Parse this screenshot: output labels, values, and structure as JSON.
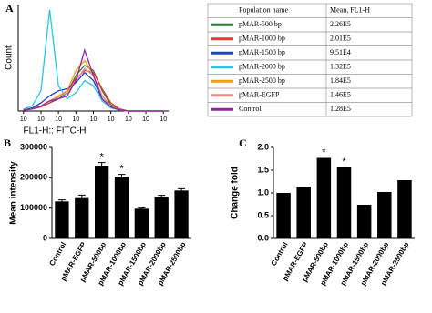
{
  "chart_data": [
    {
      "type": "line",
      "panel": "A",
      "x_label": "FL1-H:: FITC-H",
      "y_label": "Count",
      "x": [
        0,
        0.5,
        1,
        1.5,
        2,
        2.5,
        3,
        3.5,
        4,
        4.5,
        5,
        5.5,
        6,
        6.5,
        7,
        7.5,
        8
      ],
      "xlim": [
        -0.3,
        8.3
      ],
      "ylim": [
        0,
        105
      ],
      "xticks": [
        {
          "value": 0,
          "label": "10"
        },
        {
          "value": 1,
          "label": "10"
        },
        {
          "value": 2,
          "label": "10"
        },
        {
          "value": 3,
          "label": "10"
        },
        {
          "value": 4,
          "label": "10"
        },
        {
          "value": 5,
          "label": "10"
        },
        {
          "value": 6,
          "label": "10"
        },
        {
          "value": 7,
          "label": "10"
        },
        {
          "value": 8,
          "label": "10"
        }
      ],
      "table_header": [
        "Population name",
        "Mean, FL1-H"
      ],
      "series": [
        {
          "name": "pMAR-500 bp",
          "color": "#2e7d32",
          "mean": 226000,
          "mean_label": "2.26E5",
          "values": [
            1,
            2,
            4,
            8,
            12,
            18,
            35,
            45,
            40,
            20,
            6,
            2,
            0,
            0,
            0,
            0,
            0
          ]
        },
        {
          "name": "pMAR-1000 bp",
          "color": "#e53935",
          "mean": 201000,
          "mean_label": "2.01E5",
          "values": [
            1,
            2,
            4,
            8,
            14,
            20,
            32,
            40,
            38,
            22,
            8,
            2,
            0,
            0,
            0,
            0,
            0
          ]
        },
        {
          "name": "pMAR-1500 bp",
          "color": "#1e40c8",
          "mean": 95100,
          "mean_label": "9.51E4",
          "values": [
            1,
            3,
            8,
            15,
            20,
            22,
            28,
            38,
            30,
            12,
            4,
            1,
            0,
            0,
            0,
            0,
            0
          ]
        },
        {
          "name": "pMAR-2000 bp",
          "color": "#29c5e6",
          "mean": 132000,
          "mean_label": "1.32E5",
          "values": [
            2,
            5,
            20,
            100,
            25,
            12,
            18,
            30,
            25,
            10,
            3,
            1,
            0,
            0,
            0,
            0,
            0
          ]
        },
        {
          "name": "pMAR-2500 bp",
          "color": "#f39c12",
          "mean": 184000,
          "mean_label": "1.84E5",
          "values": [
            1,
            2,
            5,
            10,
            15,
            20,
            40,
            50,
            35,
            15,
            5,
            1,
            0,
            0,
            0,
            0,
            0
          ]
        },
        {
          "name": "pMAR-EGFP",
          "color": "#e88a8a",
          "mean": 146000,
          "mean_label": "1.46E5",
          "values": [
            1,
            2,
            5,
            10,
            14,
            18,
            30,
            42,
            35,
            15,
            5,
            1,
            0,
            0,
            0,
            0,
            0
          ]
        },
        {
          "name": "Control",
          "color": "#8e24aa",
          "mean": 128000,
          "mean_label": "1.28E5",
          "values": [
            1,
            2,
            5,
            10,
            12,
            15,
            30,
            60,
            35,
            12,
            4,
            1,
            0,
            0,
            0,
            0,
            0
          ]
        }
      ]
    },
    {
      "type": "bar",
      "panel": "B",
      "y_label": "Mean intensity",
      "color": "#000000",
      "categories": [
        "Control",
        "pMAR-EGFP",
        "pMAR-500bp",
        "pMAR-1000bp",
        "pMAR-1500bp",
        "pMAR-2000bp",
        "pMAR-2500bp"
      ],
      "values": [
        122000,
        133000,
        240000,
        203000,
        98000,
        137000,
        158000
      ],
      "errors": [
        5000,
        10000,
        10000,
        8000,
        2000,
        5000,
        6000
      ],
      "significance": [
        null,
        null,
        "*",
        "*",
        null,
        null,
        null
      ],
      "ylim": [
        0,
        300000
      ],
      "yticks": [
        0,
        100000,
        200000,
        300000
      ]
    },
    {
      "type": "bar",
      "panel": "C",
      "y_label": "Change fold",
      "color": "#000000",
      "categories": [
        "Control",
        "pMAR-EGFP",
        "pMAR-500bp",
        "pMAR-1000bp",
        "pMAR-1500bp",
        "pMAR-2000bp",
        "pMAR-2500bp"
      ],
      "values": [
        1.0,
        1.14,
        1.77,
        1.56,
        0.74,
        1.02,
        1.28
      ],
      "significance": [
        null,
        null,
        "*",
        "*",
        null,
        null,
        null
      ],
      "ylim": [
        0,
        2
      ],
      "yticks": [
        {
          "value": 0,
          "label": "0.0"
        },
        {
          "value": 0.5,
          "label": "0.5"
        },
        {
          "value": 1,
          "label": "1.0"
        },
        {
          "value": 1.5,
          "label": "1.5"
        },
        {
          "value": 2,
          "label": "2.0"
        }
      ]
    }
  ]
}
